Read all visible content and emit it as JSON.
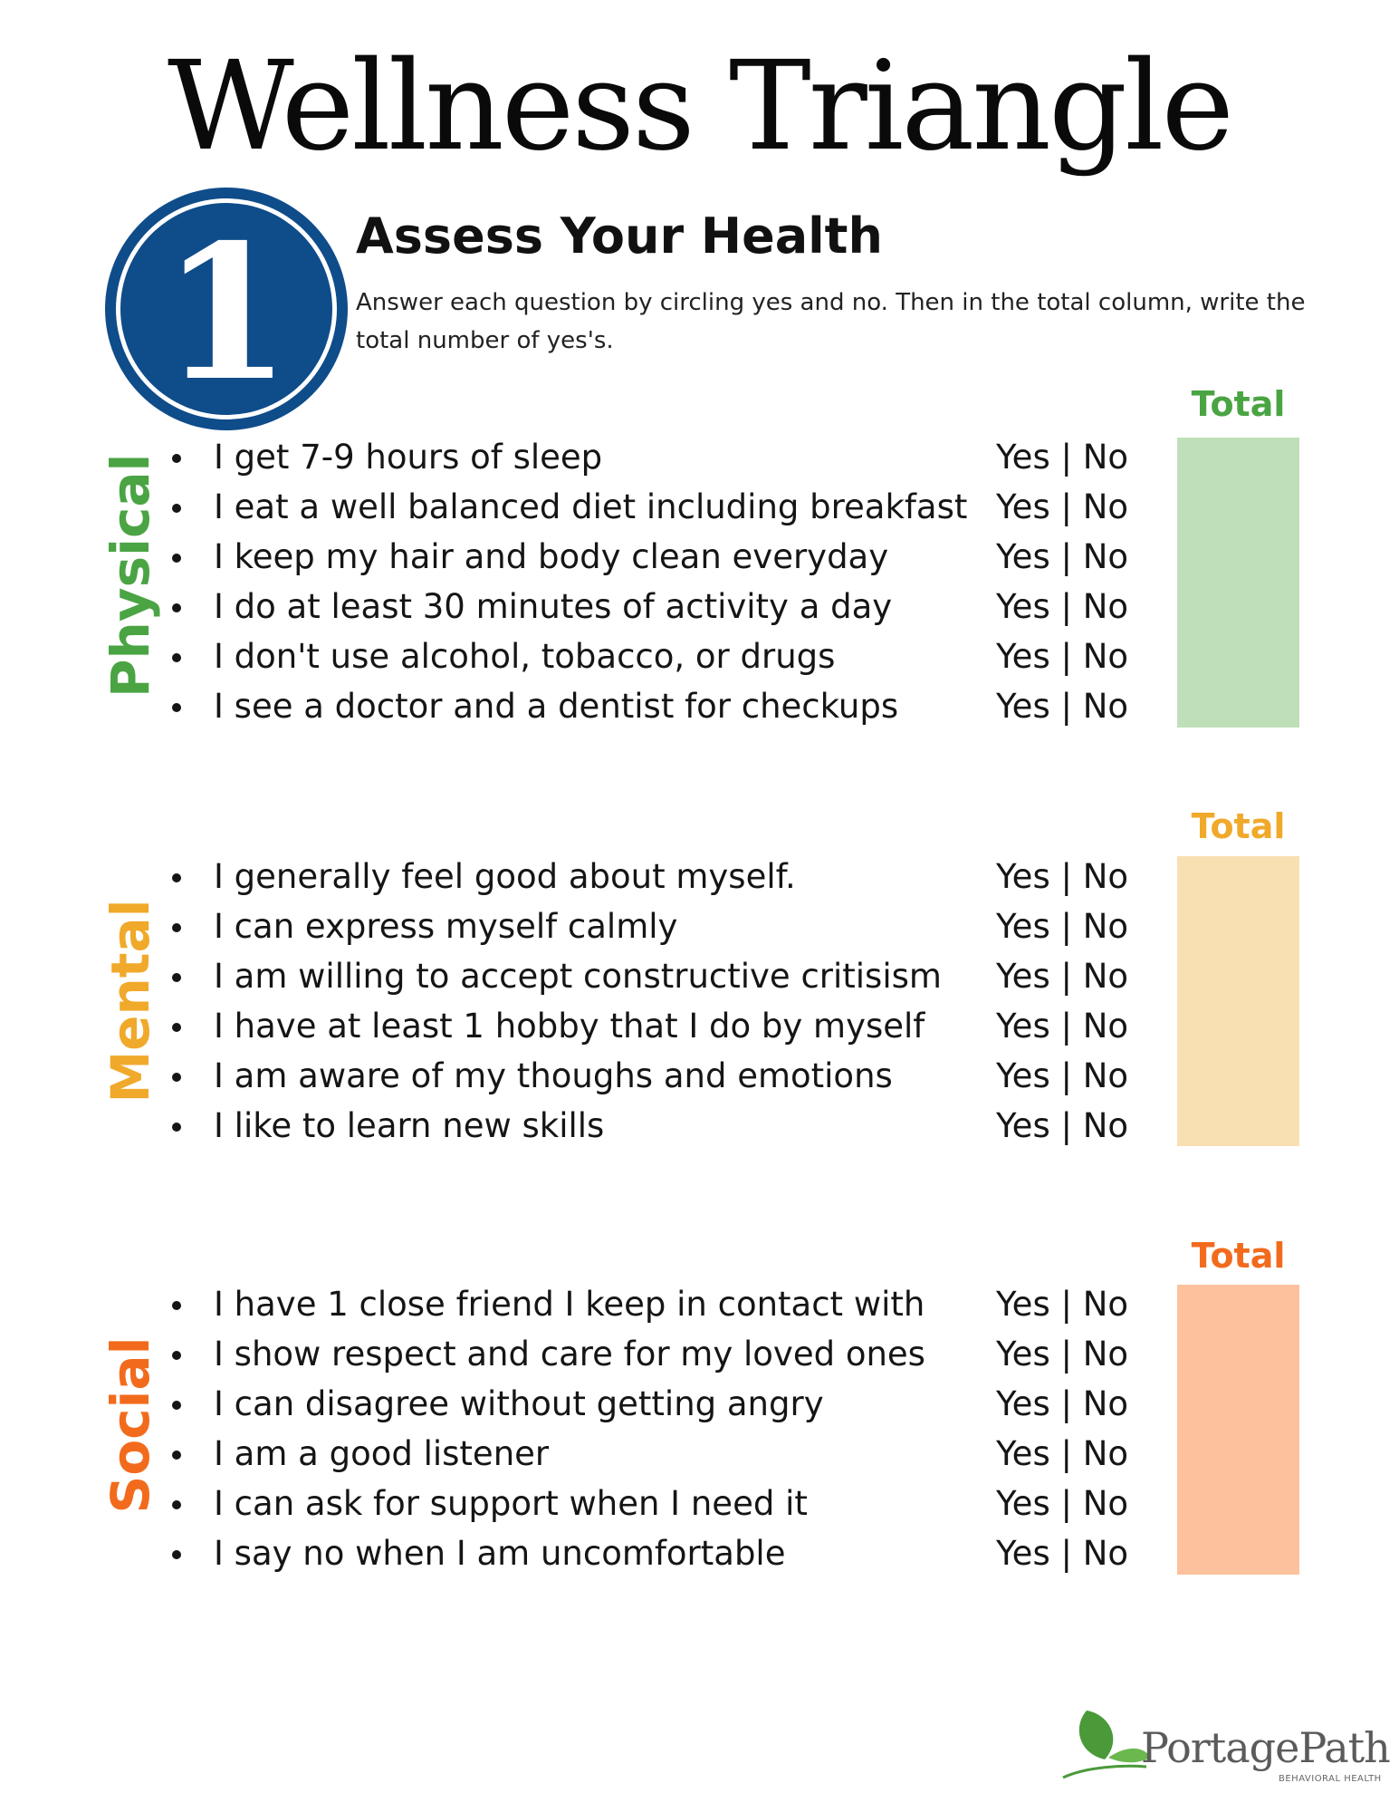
{
  "title": "Wellness Triangle",
  "step": {
    "number": "1",
    "heading": "Assess Your Health",
    "instructions": "Answer each question by circling yes and no. Then in the total column, write the total number of yes's.",
    "badge_color": "#0f4c8a"
  },
  "answer_label": "Yes | No",
  "total_label": "Total",
  "sections": [
    {
      "label": "Physical",
      "color": "#4aa443",
      "box_color": "#bfdfb9",
      "items": [
        "I get 7-9 hours of sleep",
        "I eat a well balanced diet including breakfast",
        "I keep my hair and body clean everyday",
        "I do at least 30 minutes of activity a day",
        "I don't use alcohol, tobacco, or drugs",
        "I see a doctor and a dentist for checkups"
      ]
    },
    {
      "label": "Mental",
      "color": "#f0a92a",
      "box_color": "#f8e0b2",
      "items": [
        "I generally feel good about myself.",
        "I can express myself calmly",
        "I am willing to accept constructive critisism",
        "I have at least 1 hobby that I do by myself",
        "I am aware of my thoughs and emotions",
        "I like to learn new skills"
      ]
    },
    {
      "label": "Social",
      "color": "#f26b1d",
      "box_color": "#fdc29d",
      "items": [
        "I have 1 close friend I keep in contact with",
        "I show respect and care for my loved ones",
        "I can disagree without getting angry",
        "I am a good listener",
        "I can ask for support when I need it",
        "I say no when I am uncomfortable"
      ]
    }
  ],
  "logo": {
    "name": "PortagePath",
    "tagline": "BEHAVIORAL HEALTH",
    "leaf_color": "#4a9a3a"
  }
}
